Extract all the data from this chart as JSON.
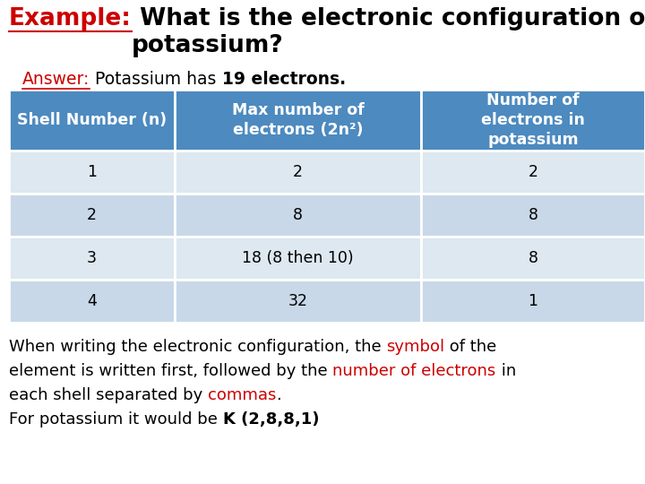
{
  "title_example": "Example:",
  "title_rest": " What is the electronic configuration of\npotassium?",
  "answer_label": "Answer:",
  "answer_text": " Potassium has ",
  "answer_bold": "19 electrons.",
  "header_col1": "Shell Number (n)",
  "header_col2": "Max number of\nelectrons (2n²)",
  "header_col3": "Number of\nelectrons in\npotassium",
  "rows": [
    [
      "1",
      "2",
      "2"
    ],
    [
      "2",
      "8",
      "8"
    ],
    [
      "3",
      "18 (8 then 10)",
      "8"
    ],
    [
      "4",
      "32",
      "1"
    ]
  ],
  "header_bg": "#4d8abf",
  "row_bg_light": "#dde8f0",
  "row_bg_dark": "#c8d8e8",
  "header_text_color": "#ffffff",
  "row_text_color": "#000000",
  "title_example_color": "#cc0000",
  "answer_label_color": "#cc0000",
  "footer_red_color": "#cc0000",
  "background_color": "#ffffff",
  "footer_lines": [
    [
      {
        "text": "When writing the electronic configuration, the ",
        "color": "#000000",
        "bold": false
      },
      {
        "text": "symbol",
        "color": "#cc0000",
        "bold": false
      },
      {
        "text": " of the",
        "color": "#000000",
        "bold": false
      }
    ],
    [
      {
        "text": "element is written first, followed by the ",
        "color": "#000000",
        "bold": false
      },
      {
        "text": "number of electrons",
        "color": "#cc0000",
        "bold": false
      },
      {
        "text": " in",
        "color": "#000000",
        "bold": false
      }
    ],
    [
      {
        "text": "each shell separated by ",
        "color": "#000000",
        "bold": false
      },
      {
        "text": "commas",
        "color": "#cc0000",
        "bold": false
      },
      {
        "text": ".",
        "color": "#000000",
        "bold": false
      }
    ],
    [
      {
        "text": "For potassium it would be ",
        "color": "#000000",
        "bold": false
      },
      {
        "text": "K (2,8,8,1)",
        "color": "#000000",
        "bold": true
      }
    ]
  ]
}
